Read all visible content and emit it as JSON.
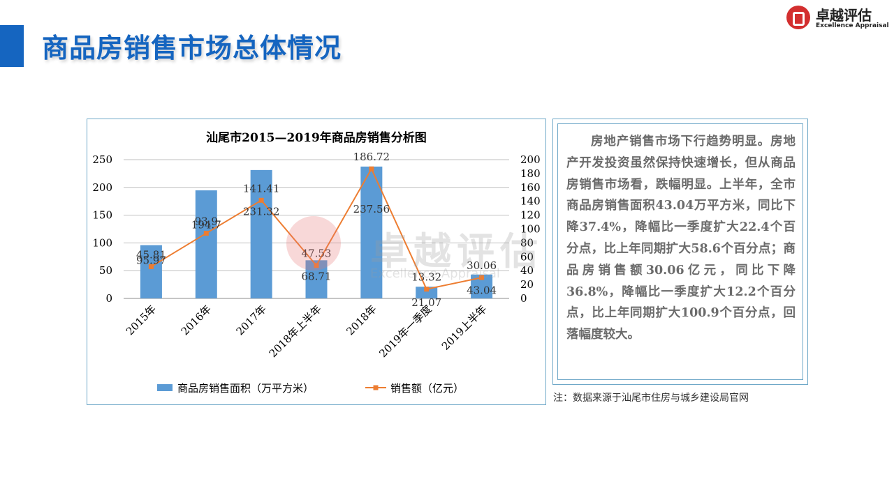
{
  "header": {
    "title": "商品房销售市场总体情况"
  },
  "logo": {
    "cn": "卓越评估",
    "en": "Excellence Appraisal"
  },
  "watermark": {
    "cn": "卓越评估",
    "en": "Excellence Appraisal"
  },
  "colors": {
    "accent": "#1565c0",
    "bar": "#5b9bd5",
    "line": "#ed7d31",
    "logo_red": "#d32f2f"
  },
  "chart_data": {
    "type": "bar",
    "title": "汕尾市2015—2019年商品房销售分析图",
    "categories": [
      "2015年",
      "2016年",
      "2017年",
      "2018年上半年",
      "2018年",
      "2019年一季度",
      "2019上半年"
    ],
    "series": [
      {
        "name": "商品房销售面积（万平方米）",
        "type": "bar",
        "axis": "left",
        "values": [
          95.97,
          194.7,
          231.32,
          68.71,
          237.56,
          21.07,
          43.04
        ],
        "labels": [
          "95.97",
          "194.7",
          "231.32",
          "68.71",
          "237.56",
          "21.07",
          "43.04"
        ]
      },
      {
        "name": "销售额（亿元）",
        "type": "line",
        "axis": "right",
        "values": [
          45.81,
          93.9,
          141.41,
          47.53,
          186.72,
          13.32,
          30.06
        ],
        "labels": [
          "45.81",
          "93.9",
          "141.41",
          "47.53",
          "186.72",
          "13.32",
          "30.06"
        ]
      }
    ],
    "y_left": {
      "min": 0,
      "max": 250,
      "ticks": [
        "0",
        "50",
        "100",
        "150",
        "200",
        "250"
      ]
    },
    "y_right": {
      "min": 0,
      "max": 200,
      "ticks": [
        "0",
        "20",
        "40",
        "60",
        "80",
        "100",
        "120",
        "140",
        "160",
        "180",
        "200"
      ]
    },
    "grid": true,
    "legend": "bottom"
  },
  "description": "房地产销售市场下行趋势明显。房地产开发投资虽然保持快速增长，但从商品房销售市场看，跌幅明显。上半年，全市商品房销售面积43.04万平方米，同比下降37.4%，降幅比一季度扩大22.4个百分点，比上年同期扩大58.6个百分点；商品房销售额30.06亿元，同比下降36.8%，降幅比一季度扩大12.2个百分点，比上年同期扩大100.9个百分点，回落幅度较大。",
  "note": "注：数据来源于汕尾市住房与城乡建设局官网"
}
